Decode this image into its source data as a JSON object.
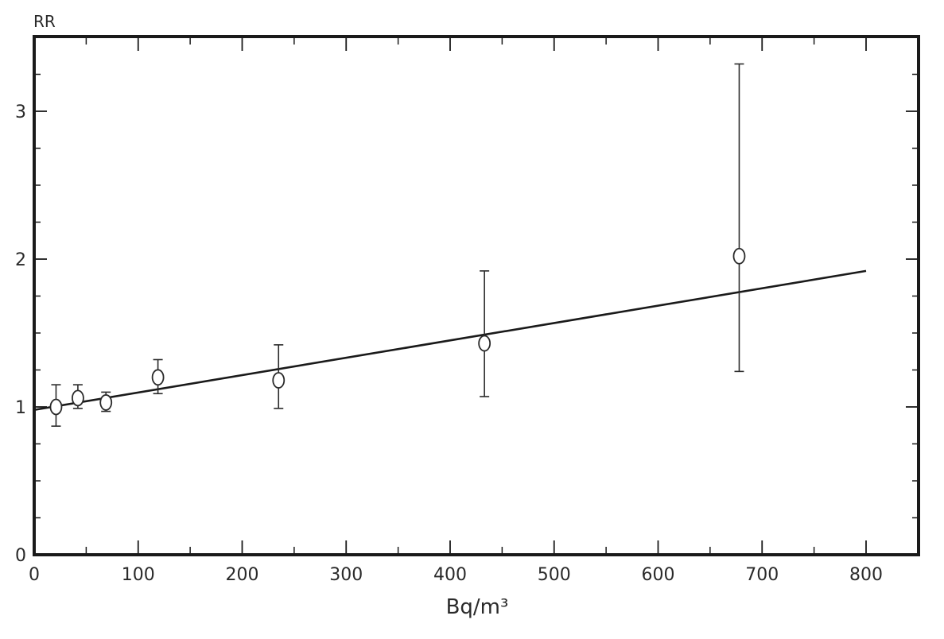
{
  "chart_data": {
    "type": "scatter",
    "title": "",
    "xlabel": "Bq/m³",
    "ylabel": "RR",
    "xlim": [
      0,
      850
    ],
    "ylim": [
      0,
      3.5
    ],
    "x_ticks": [
      0,
      100,
      200,
      300,
      400,
      500,
      600,
      700,
      800
    ],
    "x_tick_labels": [
      "0",
      "100",
      "200",
      "300",
      "400",
      "500",
      "600",
      "700",
      "800"
    ],
    "x_minor_step": 50,
    "y_ticks": [
      0,
      1,
      2,
      3
    ],
    "y_tick_labels": [
      "0",
      "1",
      "2",
      "3"
    ],
    "y_minor_step": 0.25,
    "grid": false,
    "legend": "none",
    "series": [
      {
        "marker": "circle",
        "points": [
          {
            "x": 21,
            "y": 1.0,
            "low": 0.87,
            "high": 1.15
          },
          {
            "x": 42,
            "y": 1.06,
            "low": 0.99,
            "high": 1.15
          },
          {
            "x": 69,
            "y": 1.03,
            "low": 0.97,
            "high": 1.1
          },
          {
            "x": 119,
            "y": 1.2,
            "low": 1.09,
            "high": 1.32
          },
          {
            "x": 235,
            "y": 1.18,
            "low": 0.99,
            "high": 1.42
          },
          {
            "x": 433,
            "y": 1.43,
            "low": 1.07,
            "high": 1.92
          },
          {
            "x": 678,
            "y": 2.02,
            "low": 1.24,
            "high": 3.32
          }
        ]
      }
    ],
    "fit_line": {
      "x_start": 0,
      "y_start": 0.98,
      "x_end": 800,
      "y_end": 1.92
    },
    "colors": {
      "axis": "#1a1a1a",
      "marker": "#2a2a2a",
      "line": "#1a1a1a"
    }
  }
}
